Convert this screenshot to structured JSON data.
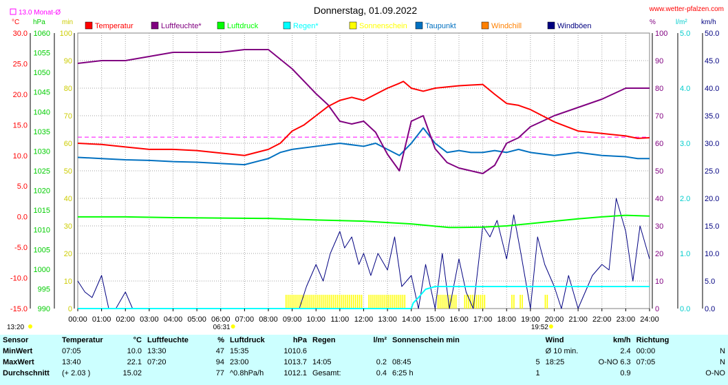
{
  "header": {
    "title": "Donnerstag, 01.09.2022",
    "source": "www.wetter-pfalzen.com",
    "month_avg": "13.0 Monat-Ø",
    "left_units": [
      "°C",
      "hPa",
      "min"
    ],
    "right_units": [
      "%",
      "l/m²",
      "km/h"
    ]
  },
  "legend": [
    {
      "label": "Temperatur",
      "color": "#ff0000"
    },
    {
      "label": "Luftfeuchte*",
      "color": "#800080"
    },
    {
      "label": "Luftdruck",
      "color": "#00ff00"
    },
    {
      "label": "Regen*",
      "color": "#00ffff"
    },
    {
      "label": "Sonnenschein",
      "color": "#ffff00"
    },
    {
      "label": "Taupunkt",
      "color": "#0070c0"
    },
    {
      "label": "Windchill",
      "color": "#ff8000"
    },
    {
      "label": "Windböen",
      "color": "#000080"
    }
  ],
  "chart_data": {
    "type": "line",
    "x_ticks": [
      "00:00",
      "01:00",
      "02:00",
      "03:00",
      "04:00",
      "05:00",
      "06:00",
      "07:00",
      "08:00",
      "09:00",
      "10:00",
      "11:00",
      "12:00",
      "13:00",
      "14:00",
      "15:00",
      "16:00",
      "17:00",
      "18:00",
      "19:00",
      "20:00",
      "21:00",
      "22:00",
      "23:00",
      "24:00"
    ],
    "axes": {
      "temp_c": [
        "30.0",
        "25.0",
        "20.0",
        "15.0",
        "10.0",
        "5.0",
        "0.0",
        "-5.0",
        "-10.0",
        "-15.0"
      ],
      "pressure_hpa": [
        "1060",
        "1055",
        "1050",
        "1045",
        "1040",
        "1035",
        "1030",
        "1025",
        "1020",
        "1015",
        "1010",
        "1005",
        "1000",
        "995",
        "990"
      ],
      "sun_min": [
        "100",
        "90",
        "80",
        "70",
        "60",
        "50",
        "40",
        "30",
        "20",
        "10",
        "0"
      ],
      "humidity_pct": [
        "100",
        "90",
        "80",
        "70",
        "60",
        "50",
        "40",
        "30",
        "20",
        "10",
        "0"
      ],
      "rain_lm2": [
        "5.0",
        "4.0",
        "3.0",
        "2.0",
        "1.0",
        "0.0"
      ],
      "wind_kmh": [
        "50.0",
        "45.0",
        "40.0",
        "35.0",
        "30.0",
        "25.0",
        "20.0",
        "15.0",
        "10.0",
        "5.0",
        "0.0"
      ]
    },
    "ylim_temp": [
      -15,
      30
    ],
    "ylim_pct": [
      0,
      100
    ],
    "ylim_rain": [
      0,
      5
    ],
    "ylim_wind": [
      0,
      50
    ],
    "month_avg_temp": 13.0,
    "sunrise": "06:31",
    "sunset": "19:52",
    "sunrise_dur": "13:20",
    "series": [
      {
        "name": "Temperatur",
        "color": "#ff0000",
        "unit": "°C",
        "x": [
          0,
          1,
          2,
          3,
          4,
          5,
          6,
          7,
          8,
          8.5,
          9,
          9.5,
          10,
          10.5,
          11,
          11.5,
          12,
          12.5,
          13,
          13.5,
          13.67,
          14,
          14.5,
          15,
          15.5,
          16,
          16.5,
          17,
          17.5,
          18,
          18.5,
          19,
          19.5,
          20,
          21,
          22,
          23,
          23.5,
          24
        ],
        "y": [
          12.0,
          11.8,
          11.4,
          11.0,
          11.0,
          10.8,
          10.4,
          10.0,
          11.0,
          12.0,
          14.0,
          15.0,
          16.5,
          18.0,
          19.0,
          19.5,
          19.0,
          20.0,
          21.0,
          21.8,
          22.1,
          21.0,
          20.5,
          21.0,
          21.2,
          21.4,
          21.5,
          21.6,
          20.0,
          18.5,
          18.2,
          17.5,
          16.5,
          15.5,
          14.0,
          13.6,
          13.2,
          12.8,
          12.9
        ]
      },
      {
        "name": "Luftfeuchte*",
        "color": "#800080",
        "unit": "%",
        "x": [
          0,
          1,
          2,
          3,
          4,
          5,
          6,
          7,
          7.33,
          8,
          9,
          10,
          10.5,
          11,
          11.5,
          12,
          12.5,
          13,
          13.5,
          14,
          14.5,
          15,
          15.5,
          16,
          16.5,
          17,
          17.5,
          18,
          18.5,
          19,
          20,
          21,
          22,
          23,
          24
        ],
        "y": [
          89,
          90,
          90,
          91.5,
          93,
          93,
          93,
          94,
          94,
          94,
          87,
          78,
          74,
          68,
          67,
          68,
          64,
          56,
          50,
          68,
          70,
          58,
          53,
          51,
          50,
          49,
          52,
          60,
          62,
          66,
          70,
          73,
          76,
          80,
          80
        ]
      },
      {
        "name": "Luftdruck",
        "color": "#00ff00",
        "unit": "hPa",
        "x": [
          0,
          2,
          4,
          6,
          8,
          10,
          12,
          14,
          15.58,
          16,
          17,
          18,
          19,
          20,
          21,
          22,
          23,
          24
        ],
        "y": [
          1013.3,
          1013.3,
          1013.1,
          1013.0,
          1012.9,
          1012.5,
          1012.2,
          1011.5,
          1010.6,
          1010.6,
          1010.7,
          1011.0,
          1011.6,
          1012.2,
          1012.8,
          1013.3,
          1013.7,
          1013.5
        ]
      },
      {
        "name": "Regen*",
        "color": "#00ffff",
        "unit": "l/m²",
        "x": [
          0,
          14,
          14.08,
          14.3,
          14.6,
          15,
          16,
          20,
          24
        ],
        "y": [
          0,
          0,
          0.1,
          0.2,
          0.35,
          0.4,
          0.4,
          0.4,
          0.4
        ]
      },
      {
        "name": "Taupunkt",
        "color": "#0070c0",
        "unit": "°C",
        "x": [
          0,
          1,
          2,
          3,
          4,
          5,
          6,
          7,
          8,
          8.5,
          9,
          10,
          11,
          12,
          12.5,
          13,
          13.5,
          14,
          14.5,
          15,
          15.5,
          16,
          16.5,
          17,
          17.5,
          18,
          18.5,
          19,
          20,
          21,
          22,
          23,
          23.5,
          24
        ],
        "y": [
          9.7,
          9.5,
          9.3,
          9.2,
          9.0,
          8.9,
          8.7,
          8.5,
          9.5,
          10.5,
          11.0,
          11.5,
          12.0,
          11.5,
          12.0,
          11.0,
          10.0,
          12.0,
          14.5,
          12.0,
          10.5,
          10.8,
          10.5,
          10.5,
          10.8,
          10.5,
          11.0,
          10.5,
          10.0,
          10.5,
          10.0,
          9.8,
          9.5,
          9.5
        ]
      },
      {
        "name": "Windböen",
        "color": "#000080",
        "unit": "km/h",
        "x": [
          0,
          0.3,
          0.6,
          1.0,
          1.3,
          1.6,
          2.0,
          2.3,
          2.6,
          3,
          5,
          8,
          9,
          9.3,
          9.6,
          10,
          10.3,
          10.6,
          11,
          11.2,
          11.5,
          11.8,
          12,
          12.3,
          12.6,
          13,
          13.3,
          13.6,
          14,
          14.3,
          14.6,
          15,
          15.3,
          15.6,
          16,
          16.3,
          16.6,
          17,
          17.3,
          17.6,
          18,
          18.3,
          18.6,
          19,
          19.3,
          19.6,
          20,
          20.3,
          20.6,
          21,
          21.3,
          21.6,
          22,
          22.3,
          22.6,
          23,
          23.3,
          23.6,
          24
        ],
        "y": [
          5,
          3,
          2,
          6,
          0,
          0,
          3,
          0,
          0,
          0,
          0,
          0,
          0,
          0,
          4,
          8,
          5,
          10,
          14,
          11,
          13,
          8,
          10,
          6,
          10,
          7,
          13,
          4,
          6,
          0,
          8,
          0,
          10,
          0,
          9,
          3,
          0,
          15,
          13,
          16,
          9,
          17,
          10,
          0,
          13,
          8,
          4,
          0,
          6,
          0,
          3,
          6,
          8,
          7,
          20,
          14,
          5,
          15,
          9
        ]
      },
      {
        "name": "Sonnenschein",
        "color": "#ffff00",
        "unit": "min",
        "intervals": [
          [
            8.72,
            11.92
          ],
          [
            12.2,
            13.75
          ],
          [
            15.1,
            15.9
          ],
          [
            16.22,
            17.08
          ],
          [
            18.2,
            18.35
          ],
          [
            18.55,
            18.65
          ],
          [
            19.6,
            19.7
          ]
        ],
        "value": 5
      }
    ]
  },
  "stats": {
    "headers": {
      "sensor": "Sensor",
      "temp": "Temperatur",
      "temp_unit": "°C",
      "hum": "Luftfeuchte",
      "hum_unit": "%",
      "press": "Luftdruck",
      "press_unit": "hPa",
      "rain": "Regen",
      "rain_unit": "l/m²",
      "sun": "Sonnenschein min",
      "wind": "Wind",
      "wind_unit": "km/h",
      "dir": "Richtung"
    },
    "rows": [
      {
        "label": "MinWert",
        "t_time": "07:05",
        "t_val": "10.0",
        "h_time": "13:30",
        "h_val": "47",
        "p_time": "15:35",
        "p_val": "1010.6",
        "r_time": "",
        "r_val": "",
        "s_time": "",
        "s_val": "",
        "w_time": "Ø 10 min.",
        "w_val": "2.4",
        "d_time": "00:00",
        "d_val": "N"
      },
      {
        "label": "MaxWert",
        "t_time": "13:40",
        "t_val": "22.1",
        "h_time": "07:20",
        "h_val": "94",
        "p_time": "23:00",
        "p_val": "1013.7",
        "r_time": "14:05",
        "r_val": "0.2",
        "s_time": "08:45",
        "s_val": "5",
        "w_time": "18:25",
        "w_val": "O-NO 6.3",
        "d_time": "07:05",
        "d_val": "N"
      },
      {
        "label": "Durchschnitt",
        "t_time": "(+ 2.03 )",
        "t_val": "15.02",
        "h_time": "",
        "h_val": "77",
        "p_time": "^0.8hPa/h",
        "p_val": "1012.1",
        "r_time": "Gesamt:",
        "r_val": "0.4",
        "s_time": "6:25 h",
        "s_val": "1",
        "w_time": "",
        "w_val": "0.9",
        "d_time": "",
        "d_val": "O-NO"
      }
    ]
  }
}
